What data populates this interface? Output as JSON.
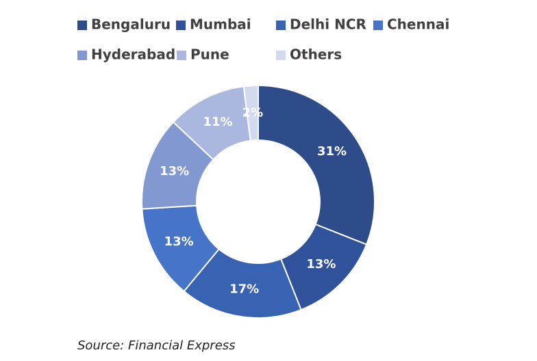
{
  "chart_data": {
    "type": "donut",
    "categories": [
      "Bengaluru",
      "Mumbai",
      "Delhi NCR",
      "Chennai",
      "Hyderabad",
      "Pune",
      "Others"
    ],
    "values": [
      31,
      13,
      17,
      13,
      13,
      11,
      2
    ],
    "value_labels": [
      "31%",
      "13%",
      "17%",
      "13%",
      "13%",
      "11%",
      "2%"
    ],
    "colors": [
      "#2e4b8a",
      "#30529b",
      "#3862b2",
      "#4574c8",
      "#8198d1",
      "#aab8df",
      "#d1daef"
    ],
    "source": "Source: Financial Express"
  }
}
